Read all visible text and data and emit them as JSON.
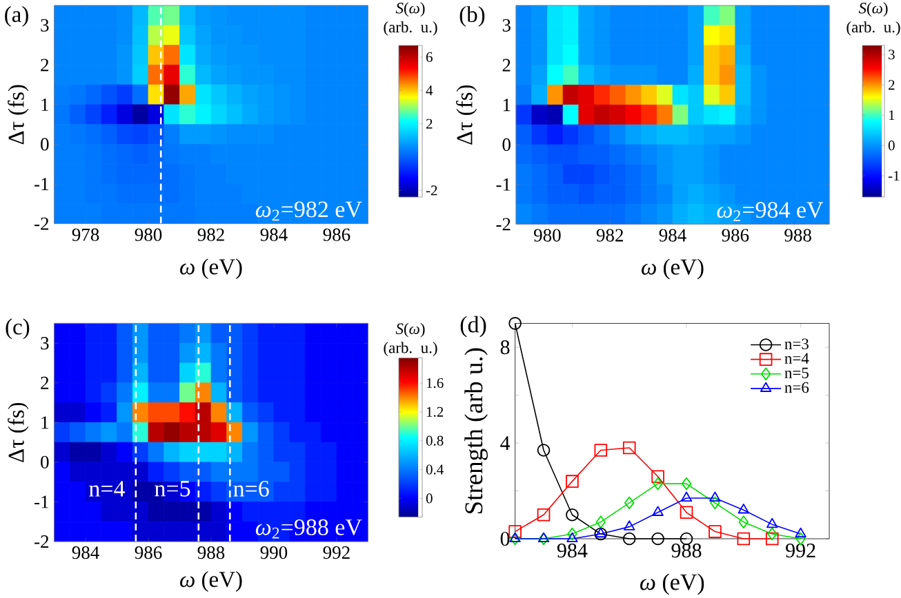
{
  "chart_data": [
    {
      "type": "heatmap",
      "title": "(a)",
      "xlabel": "*ω* (eV)",
      "ylabel": "Δτ (fs)",
      "clabel": "*S*(*ω*) (arb. u.)",
      "xlim": [
        977,
        987
      ],
      "xticks": [
        978,
        980,
        982,
        984,
        986
      ],
      "ylim": [
        -2,
        3.5
      ],
      "yticks": [
        -2,
        -1,
        0,
        1,
        2,
        3
      ],
      "clim": [
        -2.4,
        6.7
      ],
      "cticks": [
        -2,
        2,
        4,
        6
      ],
      "cells": [
        [
          0.5,
          0.5,
          0.5,
          0.5,
          0.6,
          1.2,
          2.6,
          2.8,
          1.2,
          0.8,
          0.7,
          0.6,
          0.6,
          0.6,
          0.6,
          0.6,
          0.5,
          0.5,
          0.5,
          0.5
        ],
        [
          0.5,
          0.5,
          0.5,
          0.5,
          0.6,
          1.3,
          3.2,
          3.5,
          1.4,
          0.9,
          0.7,
          0.7,
          0.6,
          0.6,
          0.6,
          0.6,
          0.5,
          0.5,
          0.5,
          0.5
        ],
        [
          0.5,
          0.5,
          0.5,
          0.5,
          0.7,
          1.4,
          4.0,
          4.6,
          1.8,
          1.0,
          0.8,
          0.7,
          0.7,
          0.6,
          0.6,
          0.6,
          0.5,
          0.5,
          0.5,
          0.5
        ],
        [
          0.5,
          0.5,
          0.5,
          0.5,
          0.7,
          1.5,
          4.6,
          5.6,
          2.4,
          1.2,
          0.9,
          0.8,
          0.7,
          0.7,
          0.6,
          0.6,
          0.5,
          0.5,
          0.5,
          0.5
        ],
        [
          0.4,
          0.3,
          0.1,
          -0.2,
          -0.5,
          0.2,
          3.8,
          6.5,
          4.2,
          1.8,
          1.4,
          1.1,
          0.9,
          0.8,
          0.7,
          0.6,
          0.5,
          0.5,
          0.5,
          0.5
        ],
        [
          0.3,
          0.0,
          -0.4,
          -0.9,
          -1.6,
          -2.2,
          -1.6,
          1.8,
          2.4,
          2.0,
          1.6,
          1.3,
          1.0,
          0.8,
          0.7,
          0.6,
          0.5,
          0.5,
          0.5,
          0.5
        ],
        [
          0.4,
          0.3,
          0.2,
          0.0,
          -0.3,
          -0.4,
          -0.2,
          0.4,
          0.8,
          0.8,
          0.7,
          0.6,
          0.6,
          0.6,
          0.5,
          0.5,
          0.5,
          0.5,
          0.5,
          0.5
        ],
        [
          0.4,
          0.4,
          0.3,
          0.2,
          0.1,
          0.0,
          0.1,
          0.3,
          0.4,
          0.4,
          0.5,
          0.5,
          0.5,
          0.5,
          0.5,
          0.5,
          0.5,
          0.5,
          0.5,
          0.5
        ],
        [
          0.4,
          0.4,
          0.3,
          0.2,
          0.1,
          0.1,
          0.1,
          0.2,
          0.3,
          0.4,
          0.4,
          0.5,
          0.5,
          0.5,
          0.5,
          0.5,
          0.5,
          0.5,
          0.5,
          0.5
        ],
        [
          0.4,
          0.4,
          0.3,
          0.3,
          0.2,
          0.2,
          0.2,
          0.2,
          0.3,
          0.4,
          0.4,
          0.4,
          0.5,
          0.5,
          0.5,
          0.5,
          0.5,
          0.5,
          0.5,
          0.5
        ],
        [
          0.4,
          0.4,
          0.4,
          0.3,
          0.3,
          0.3,
          0.3,
          0.3,
          0.3,
          0.4,
          0.4,
          0.4,
          0.4,
          0.5,
          0.5,
          0.5,
          0.5,
          0.5,
          0.5,
          0.5
        ]
      ],
      "ref_lines": [
        {
          "axis": "x",
          "value": 980.4,
          "color": "#ffffff",
          "line_style": "dashed"
        }
      ],
      "annotations": [
        "*ω*$_{2}$=982 eV"
      ]
    },
    {
      "type": "heatmap",
      "title": "(b)",
      "xlabel": "*ω* (eV)",
      "ylabel": "Δτ (fs)",
      "clabel": "*S*(*ω*) (arb. u.)",
      "xlim": [
        979,
        989
      ],
      "xticks": [
        980,
        982,
        984,
        986,
        988
      ],
      "ylim": [
        -2,
        3.5
      ],
      "yticks": [
        -2,
        -1,
        0,
        1,
        2,
        3
      ],
      "clim": [
        -1.7,
        3.3
      ],
      "cticks": [
        -1,
        0,
        1,
        2,
        3
      ],
      "cells": [
        [
          -0.1,
          0.0,
          0.6,
          0.7,
          0.1,
          0.0,
          -0.1,
          -0.1,
          -0.1,
          -0.1,
          -0.1,
          0.1,
          1.0,
          1.2,
          0.1,
          -0.1,
          -0.1,
          -0.1,
          -0.1,
          -0.1
        ],
        [
          -0.1,
          0.0,
          0.6,
          0.7,
          0.1,
          0.0,
          -0.1,
          -0.1,
          -0.1,
          -0.1,
          -0.1,
          0.1,
          1.6,
          1.7,
          0.1,
          -0.1,
          -0.1,
          -0.1,
          -0.1,
          -0.1
        ],
        [
          -0.1,
          0.0,
          0.6,
          0.8,
          0.1,
          0.0,
          -0.1,
          -0.1,
          -0.1,
          -0.1,
          -0.1,
          0.1,
          1.8,
          1.9,
          0.2,
          -0.1,
          -0.1,
          -0.1,
          -0.1,
          -0.1
        ],
        [
          -0.1,
          0.1,
          0.8,
          1.0,
          0.3,
          0.1,
          0.0,
          0.0,
          0.0,
          -0.1,
          -0.1,
          0.2,
          1.8,
          2.0,
          0.3,
          0.0,
          -0.1,
          -0.1,
          -0.1,
          -0.1
        ],
        [
          -0.2,
          0.2,
          2.0,
          2.9,
          2.7,
          2.4,
          2.2,
          2.0,
          1.8,
          1.5,
          0.6,
          0.4,
          1.5,
          1.8,
          0.3,
          0.0,
          -0.1,
          -0.1,
          -0.1,
          -0.1
        ],
        [
          -0.7,
          -1.4,
          -1.5,
          0.8,
          2.7,
          2.9,
          2.8,
          2.6,
          2.4,
          2.1,
          1.2,
          0.4,
          0.6,
          0.7,
          0.2,
          0.0,
          -0.1,
          -0.1,
          -0.1,
          -0.1
        ],
        [
          -0.4,
          -0.7,
          -0.9,
          -0.7,
          -0.5,
          -0.3,
          -0.1,
          0.1,
          0.2,
          0.3,
          0.3,
          0.2,
          0.1,
          0.1,
          0.0,
          -0.1,
          -0.1,
          -0.1,
          -0.1,
          -0.1
        ],
        [
          -0.3,
          -0.4,
          -0.5,
          -0.5,
          -0.4,
          -0.4,
          -0.3,
          -0.2,
          -0.1,
          0.0,
          0.1,
          0.1,
          0.0,
          -0.1,
          -0.1,
          -0.1,
          -0.1,
          -0.1,
          -0.1,
          -0.1
        ],
        [
          -0.2,
          -0.3,
          -0.4,
          -0.6,
          -0.6,
          -0.5,
          -0.4,
          -0.3,
          -0.2,
          0.0,
          0.1,
          0.1,
          0.0,
          -0.1,
          -0.1,
          -0.1,
          -0.1,
          -0.1,
          -0.1,
          -0.1
        ],
        [
          -0.2,
          -0.3,
          -0.4,
          -0.4,
          -0.5,
          -0.4,
          -0.4,
          -0.3,
          -0.2,
          -0.1,
          0.1,
          0.2,
          0.1,
          0.0,
          -0.1,
          -0.1,
          -0.1,
          -0.1,
          -0.1,
          -0.1
        ],
        [
          -0.1,
          -0.2,
          -0.3,
          -0.3,
          -0.3,
          -0.3,
          -0.3,
          -0.2,
          -0.1,
          0.0,
          0.2,
          0.3,
          0.2,
          0.1,
          0.0,
          -0.1,
          -0.1,
          -0.1,
          -0.1,
          -0.1
        ]
      ],
      "annotations": [
        "*ω*$_{2}$=984 eV"
      ]
    },
    {
      "type": "heatmap",
      "title": "(c)",
      "xlabel": "*ω* (eV)",
      "ylabel": "Δτ (fs)",
      "clabel": "*S*(*ω*) (arb. u.)",
      "xlim": [
        983,
        993
      ],
      "xticks": [
        984,
        986,
        988,
        990,
        992
      ],
      "ylim": [
        -2,
        3.5
      ],
      "yticks": [
        -2,
        -1,
        0,
        1,
        2,
        3
      ],
      "clim": [
        -0.26,
        1.95
      ],
      "cticks": [
        0,
        0.4,
        0.8,
        1.2,
        1.6
      ],
      "cells": [
        [
          0.0,
          0.0,
          0.1,
          0.1,
          0.3,
          0.5,
          0.3,
          0.3,
          0.4,
          0.5,
          0.3,
          0.3,
          0.2,
          0.1,
          0.1,
          0.1,
          0.0,
          0.0,
          0.0,
          0.0
        ],
        [
          0.0,
          0.0,
          0.1,
          0.1,
          0.3,
          0.5,
          0.3,
          0.3,
          0.5,
          0.6,
          0.4,
          0.3,
          0.2,
          0.1,
          0.1,
          0.1,
          0.0,
          0.0,
          0.0,
          0.0
        ],
        [
          0.0,
          0.0,
          0.1,
          0.1,
          0.3,
          0.6,
          0.3,
          0.3,
          0.7,
          0.9,
          0.4,
          0.3,
          0.2,
          0.1,
          0.1,
          0.1,
          0.0,
          0.0,
          0.0,
          0.0
        ],
        [
          0.0,
          0.0,
          0.1,
          0.2,
          0.4,
          0.8,
          0.4,
          0.4,
          1.0,
          1.4,
          0.6,
          0.3,
          0.2,
          0.1,
          0.1,
          0.1,
          0.0,
          0.0,
          0.0,
          0.0
        ],
        [
          -0.1,
          -0.1,
          0.0,
          0.1,
          0.5,
          1.4,
          1.5,
          1.5,
          1.6,
          1.8,
          1.4,
          0.6,
          0.3,
          0.2,
          0.1,
          0.1,
          0.0,
          0.0,
          0.0,
          0.0
        ],
        [
          0.2,
          0.3,
          0.4,
          0.5,
          0.4,
          0.9,
          1.8,
          1.9,
          1.8,
          1.8,
          1.7,
          1.4,
          0.5,
          0.3,
          0.2,
          0.1,
          0.1,
          0.0,
          0.0,
          0.0
        ],
        [
          -0.1,
          -0.2,
          -0.2,
          -0.1,
          0.0,
          0.2,
          0.4,
          0.6,
          0.7,
          0.7,
          0.7,
          0.6,
          0.4,
          0.3,
          0.2,
          0.2,
          0.1,
          0.1,
          0.0,
          0.0
        ],
        [
          0.0,
          -0.1,
          -0.1,
          -0.1,
          -0.1,
          -0.1,
          0.1,
          0.2,
          0.3,
          0.3,
          0.4,
          0.4,
          0.4,
          0.3,
          0.3,
          0.2,
          0.1,
          0.1,
          0.0,
          0.0
        ],
        [
          0.0,
          0.0,
          -0.1,
          -0.1,
          -0.1,
          -0.2,
          -0.2,
          -0.1,
          0.0,
          0.1,
          0.2,
          0.3,
          0.3,
          0.3,
          0.2,
          0.2,
          0.1,
          0.1,
          0.0,
          0.0
        ],
        [
          0.0,
          0.0,
          0.0,
          -0.1,
          -0.1,
          -0.1,
          -0.2,
          -0.2,
          -0.2,
          -0.2,
          -0.1,
          0.0,
          0.1,
          0.1,
          0.1,
          0.1,
          0.0,
          0.0,
          0.0,
          0.0
        ],
        [
          0.0,
          0.0,
          0.0,
          0.0,
          0.0,
          -0.1,
          -0.1,
          -0.1,
          -0.1,
          -0.1,
          -0.1,
          0.0,
          0.0,
          0.1,
          0.1,
          0.0,
          0.0,
          0.0,
          0.0,
          0.0
        ]
      ],
      "ref_lines": [
        {
          "axis": "x",
          "value": 985.6,
          "color": "#ffffff",
          "line_style": "dashed"
        },
        {
          "axis": "x",
          "value": 987.6,
          "color": "#ffffff",
          "line_style": "dashed"
        },
        {
          "axis": "x",
          "value": 988.6,
          "color": "#ffffff",
          "line_style": "dashed"
        }
      ],
      "annotations": [
        "*ω*$_{2}$=988 eV",
        "n=4",
        "n=5",
        "n=6"
      ]
    },
    {
      "type": "line",
      "title": "(d)",
      "xlabel": "*ω* (eV)",
      "ylabel": "Strength (arb u.)",
      "x": [
        982,
        983,
        984,
        985,
        986,
        987,
        988,
        989,
        990,
        991,
        992
      ],
      "xlim": [
        982,
        993
      ],
      "xticks": [
        984,
        988,
        992
      ],
      "ylim": [
        0,
        9
      ],
      "yticks": [
        0,
        {
          "value": 2,
          "label": null
        },
        4,
        {
          "value": 6,
          "label": null
        },
        8
      ],
      "legend": "top right",
      "series": [
        {
          "name": "n=3",
          "color": "#000000",
          "marker": "circle",
          "values": [
            9.0,
            3.7,
            1.0,
            0.2,
            0.0,
            0.0,
            0.0,
            null,
            null,
            null,
            null
          ]
        },
        {
          "name": "n=4",
          "color": "#ff0000",
          "marker": "square",
          "values": [
            0.3,
            1.0,
            2.4,
            3.7,
            3.8,
            2.6,
            1.1,
            0.3,
            0.0,
            0.0,
            null
          ]
        },
        {
          "name": "n=5",
          "color": "#00dd00",
          "marker": "diamond",
          "values": [
            0.0,
            0.0,
            0.2,
            0.7,
            1.5,
            2.3,
            2.3,
            1.5,
            0.7,
            0.2,
            0.0
          ]
        },
        {
          "name": "n=6",
          "color": "#0000ff",
          "marker": "triangle",
          "values": [
            0.0,
            0.0,
            0.0,
            0.2,
            0.5,
            1.1,
            1.7,
            1.7,
            1.2,
            0.6,
            0.2
          ]
        }
      ]
    }
  ]
}
